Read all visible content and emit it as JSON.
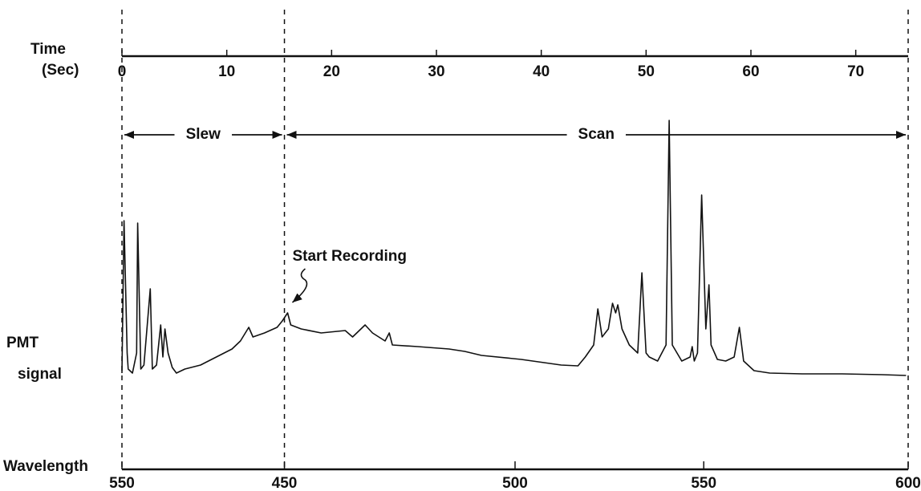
{
  "chart_data": {
    "type": "line",
    "x_label_lines": [
      "Time",
      "(Sec)"
    ],
    "y_label_lines": [
      "PMT",
      "signal"
    ],
    "wavelength_label": "Wavelength",
    "xlim": [
      0,
      75
    ],
    "xticks": [
      0,
      10,
      20,
      30,
      40,
      50,
      60,
      70
    ],
    "wavelength_ticks": [
      {
        "value": 0,
        "label": "550"
      },
      {
        "value": 15.5,
        "label": "450"
      },
      {
        "value": 37.5,
        "label": "500"
      },
      {
        "value": 55.5,
        "label": "550"
      },
      {
        "value": 75,
        "label": "600"
      }
    ],
    "ylim": [
      0,
      370
    ],
    "color": "#111111",
    "segments": [
      {
        "label": "Slew",
        "start": 0,
        "end": 15.5
      },
      {
        "label": "Scan",
        "start": 15.5,
        "end": 75
      }
    ],
    "annotation": {
      "text": "Start Recording",
      "x": 15.8,
      "y": 130
    },
    "x": [
      0,
      0.2,
      0.5,
      0.6,
      1.0,
      1.4,
      1.5,
      1.8,
      2.1,
      2.7,
      2.9,
      3.3,
      3.7,
      3.9,
      4.1,
      4.4,
      4.8,
      5.2,
      6.0,
      7.5,
      9.0,
      10.5,
      11.3,
      12.1,
      12.5,
      13.6,
      14.8,
      15.3,
      15.8,
      16.1,
      17.1,
      19.0,
      21.3,
      22.0,
      23.2,
      23.9,
      25.1,
      25.5,
      25.8,
      28.2,
      31.2,
      32.7,
      34.3,
      38.1,
      41.9,
      43.5,
      44.2,
      45.0,
      45.4,
      45.8,
      46.4,
      46.8,
      47.1,
      47.3,
      47.7,
      48.4,
      49.2,
      49.6,
      50.0,
      50.3,
      51.1,
      51.9,
      52.2,
      52.5,
      53.4,
      54.2,
      54.4,
      54.6,
      54.9,
      55.3,
      55.7,
      56.0,
      56.2,
      56.8,
      57.6,
      58.4,
      58.9,
      59.3,
      60.3,
      61.8,
      64.9,
      68.7,
      72.5,
      74.8
    ],
    "values": [
      55,
      245,
      80,
      60,
      55,
      80,
      242,
      60,
      65,
      160,
      60,
      65,
      115,
      75,
      110,
      80,
      62,
      55,
      60,
      65,
      75,
      85,
      95,
      112,
      100,
      105,
      112,
      120,
      130,
      115,
      110,
      105,
      108,
      100,
      115,
      105,
      95,
      105,
      90,
      88,
      85,
      82,
      77,
      72,
      65,
      64,
      75,
      90,
      135,
      100,
      110,
      142,
      130,
      140,
      110,
      90,
      80,
      180,
      80,
      75,
      70,
      90,
      370,
      90,
      70,
      75,
      88,
      70,
      80,
      277,
      110,
      165,
      90,
      72,
      70,
      75,
      112,
      70,
      58,
      55,
      54,
      54,
      53,
      52
    ]
  }
}
